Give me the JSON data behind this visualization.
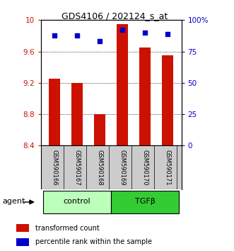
{
  "title": "GDS4106 / 202124_s_at",
  "samples": [
    "GSM590166",
    "GSM590167",
    "GSM590168",
    "GSM590169",
    "GSM590170",
    "GSM590171"
  ],
  "bar_values": [
    9.25,
    9.2,
    8.8,
    9.95,
    9.65,
    9.55
  ],
  "percentile_values": [
    88,
    88,
    83,
    92,
    90,
    89
  ],
  "bar_color": "#cc1100",
  "dot_color": "#0000cc",
  "ylim_left": [
    8.4,
    10.0
  ],
  "ylim_right": [
    0,
    100
  ],
  "yticks_left": [
    8.4,
    8.8,
    9.2,
    9.6,
    10.0
  ],
  "yticks_right": [
    0,
    25,
    50,
    75,
    100
  ],
  "ytick_labels_left": [
    "8.4",
    "8.8",
    "9.2",
    "9.6",
    "10"
  ],
  "ytick_labels_right": [
    "0",
    "25",
    "50",
    "75",
    "100%"
  ],
  "groups": [
    {
      "label": "control",
      "samples_idx": [
        0,
        1,
        2
      ],
      "color": "#bbffbb"
    },
    {
      "label": "TGFβ",
      "samples_idx": [
        3,
        4,
        5
      ],
      "color": "#33cc33"
    }
  ],
  "agent_label": "agent",
  "legend_items": [
    {
      "label": "transformed count",
      "color": "#cc1100"
    },
    {
      "label": "percentile rank within the sample",
      "color": "#0000cc"
    }
  ],
  "bar_width": 0.5,
  "background_color": "#ffffff",
  "plot_bg_color": "#ffffff",
  "label_area_color": "#cccccc",
  "left_tick_color": "#cc1100",
  "right_tick_color": "#0000cc"
}
